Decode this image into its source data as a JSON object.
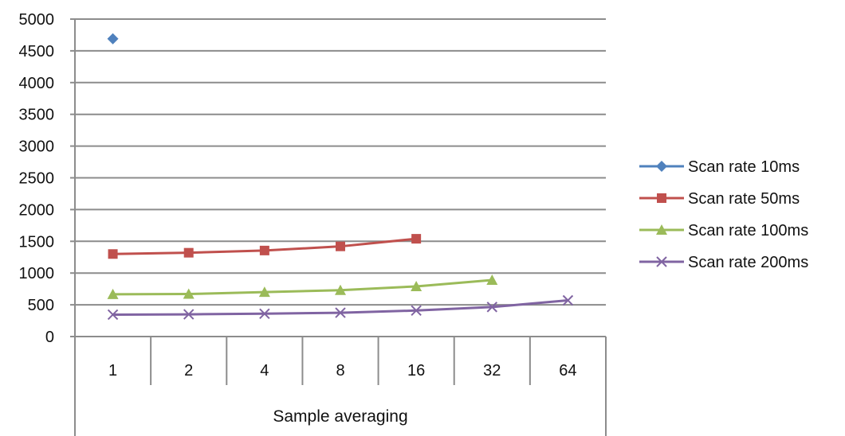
{
  "chart_data": {
    "type": "line",
    "title": "",
    "xlabel": "Sample averaging",
    "ylabel": "",
    "categories": [
      "1",
      "2",
      "4",
      "8",
      "16",
      "32",
      "64"
    ],
    "ylim": [
      0,
      5000
    ],
    "yticks": [
      "0",
      "500",
      "1000",
      "1500",
      "2000",
      "2500",
      "3000",
      "3500",
      "4000",
      "4500",
      "5000"
    ],
    "grid": "horizontal",
    "legend_position": "right",
    "series": [
      {
        "name": "Scan rate 10ms",
        "color": "#4f81bd",
        "marker": "diamond",
        "values": [
          4690,
          null,
          null,
          null,
          null,
          null,
          null
        ]
      },
      {
        "name": "Scan rate 50ms",
        "color": "#c0504d",
        "marker": "square",
        "values": [
          1300,
          1320,
          1355,
          1420,
          1540,
          null,
          null
        ]
      },
      {
        "name": "Scan rate 100ms",
        "color": "#9bbb59",
        "marker": "triangle",
        "values": [
          665,
          670,
          700,
          730,
          790,
          890,
          null
        ]
      },
      {
        "name": "Scan rate 200ms",
        "color": "#8064a2",
        "marker": "x",
        "values": [
          345,
          350,
          360,
          375,
          410,
          465,
          570
        ]
      }
    ]
  }
}
